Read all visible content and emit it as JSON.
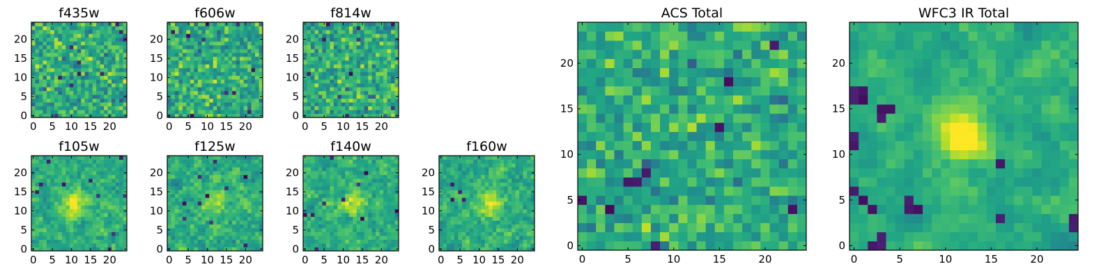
{
  "chart_data": [
    {
      "id": "f435w",
      "type": "heatmap",
      "title": "f435w",
      "grid_size": 25,
      "xticks": [
        "0",
        "5",
        "10",
        "15",
        "20"
      ],
      "yticks": [
        "0",
        "5",
        "10",
        "15",
        "20"
      ],
      "xlim": [
        0,
        24
      ],
      "ylim": [
        0,
        24
      ],
      "colormap": "viridis",
      "grid": false,
      "seed": 11,
      "smooth": 0,
      "blob": null,
      "dark_spots": []
    },
    {
      "id": "f606w",
      "type": "heatmap",
      "title": "f606w",
      "grid_size": 25,
      "xticks": [
        "0",
        "5",
        "10",
        "15",
        "20"
      ],
      "yticks": [
        "0",
        "5",
        "10",
        "15",
        "20"
      ],
      "xlim": [
        0,
        24
      ],
      "ylim": [
        0,
        24
      ],
      "colormap": "viridis",
      "grid": false,
      "seed": 23,
      "smooth": 0,
      "blob": null,
      "dark_spots": []
    },
    {
      "id": "f814w",
      "type": "heatmap",
      "title": "f814w",
      "grid_size": 25,
      "xticks": [
        "0",
        "5",
        "10",
        "15",
        "20"
      ],
      "yticks": [
        "0",
        "5",
        "10",
        "15",
        "20"
      ],
      "xlim": [
        0,
        24
      ],
      "ylim": [
        0,
        24
      ],
      "colormap": "viridis",
      "grid": false,
      "seed": 37,
      "smooth": 0,
      "blob": null,
      "dark_spots": []
    },
    {
      "id": "f105w",
      "type": "heatmap",
      "title": "f105w",
      "grid_size": 25,
      "xticks": [
        "0",
        "5",
        "10",
        "15",
        "20"
      ],
      "yticks": [
        "0",
        "5",
        "10",
        "15",
        "20"
      ],
      "xlim": [
        0,
        24
      ],
      "ylim": [
        0,
        24
      ],
      "colormap": "viridis",
      "grid": false,
      "seed": 41,
      "smooth": 0.5,
      "blob": {
        "x": 11,
        "y": 12,
        "sigma": 2.5,
        "amp": 0.35
      },
      "dark_spots": []
    },
    {
      "id": "f125w",
      "type": "heatmap",
      "title": "f125w",
      "grid_size": 25,
      "xticks": [
        "0",
        "5",
        "10",
        "15",
        "20"
      ],
      "yticks": [
        "0",
        "5",
        "10",
        "15",
        "20"
      ],
      "xlim": [
        0,
        24
      ],
      "ylim": [
        0,
        24
      ],
      "colormap": "viridis",
      "grid": false,
      "seed": 53,
      "smooth": 0.5,
      "blob": {
        "x": 12,
        "y": 12,
        "sigma": 2.5,
        "amp": 0.2
      },
      "dark_spots": []
    },
    {
      "id": "f140w",
      "type": "heatmap",
      "title": "f140w",
      "grid_size": 25,
      "xticks": [
        "0",
        "5",
        "10",
        "15",
        "20"
      ],
      "yticks": [
        "0",
        "5",
        "10",
        "15",
        "20"
      ],
      "xlim": [
        0,
        24
      ],
      "ylim": [
        0,
        24
      ],
      "colormap": "viridis",
      "grid": false,
      "seed": 67,
      "smooth": 0.5,
      "blob": {
        "x": 12,
        "y": 12,
        "sigma": 2.5,
        "amp": 0.25
      },
      "dark_spots": []
    },
    {
      "id": "f160w",
      "type": "heatmap",
      "title": "f160w",
      "grid_size": 25,
      "xticks": [
        "0",
        "5",
        "10",
        "15",
        "20"
      ],
      "yticks": [
        "0",
        "5",
        "10",
        "15",
        "20"
      ],
      "xlim": [
        0,
        24
      ],
      "ylim": [
        0,
        24
      ],
      "colormap": "viridis",
      "grid": false,
      "seed": 79,
      "smooth": 0.5,
      "blob": {
        "x": 13,
        "y": 12,
        "sigma": 2.5,
        "amp": 0.3
      },
      "dark_spots": [
        [
          3,
          17
        ],
        [
          5,
          15
        ],
        [
          6,
          13
        ],
        [
          3,
          13
        ]
      ]
    },
    {
      "id": "acs_total",
      "type": "heatmap",
      "title": "ACS Total",
      "grid_size": 25,
      "xticks": [
        "0",
        "5",
        "10",
        "15",
        "20"
      ],
      "yticks": [
        "0",
        "5",
        "10",
        "15",
        "20"
      ],
      "xlim": [
        0,
        24
      ],
      "ylim": [
        0,
        24
      ],
      "colormap": "viridis",
      "grid": false,
      "seed": 97,
      "smooth": 0.15,
      "blob": null,
      "dark_spots": [
        [
          21,
          22
        ],
        [
          16,
          18
        ],
        [
          15,
          13
        ],
        [
          7,
          8
        ],
        [
          0,
          5
        ],
        [
          3,
          4
        ],
        [
          8,
          0
        ],
        [
          23,
          4
        ],
        [
          5,
          7
        ],
        [
          6,
          7
        ]
      ]
    },
    {
      "id": "wfc3_total",
      "type": "heatmap",
      "title": "WFC3 IR Total",
      "grid_size": 25,
      "xticks": [
        "0",
        "5",
        "10",
        "15",
        "20"
      ],
      "yticks": [
        "0",
        "5",
        "10",
        "15",
        "20"
      ],
      "xlim": [
        0,
        24
      ],
      "ylim": [
        0,
        24
      ],
      "colormap": "viridis",
      "grid": false,
      "seed": 113,
      "smooth": 0.75,
      "blob": {
        "x": 12,
        "y": 12,
        "sigma": 1.8,
        "amp": 0.55
      },
      "dark_spots": [
        [
          0,
          17
        ],
        [
          0,
          16
        ],
        [
          1,
          17
        ],
        [
          1,
          16
        ],
        [
          3,
          15
        ],
        [
          3,
          14
        ],
        [
          4,
          15
        ],
        [
          0,
          12
        ],
        [
          0,
          6
        ],
        [
          2,
          4
        ],
        [
          6,
          5
        ],
        [
          6,
          4
        ],
        [
          7,
          4
        ],
        [
          3,
          1
        ],
        [
          3,
          0
        ],
        [
          2,
          0
        ],
        [
          16,
          9
        ],
        [
          16,
          3
        ],
        [
          24,
          3
        ],
        [
          24,
          2
        ],
        [
          1,
          5
        ],
        [
          0,
          11
        ]
      ]
    }
  ]
}
